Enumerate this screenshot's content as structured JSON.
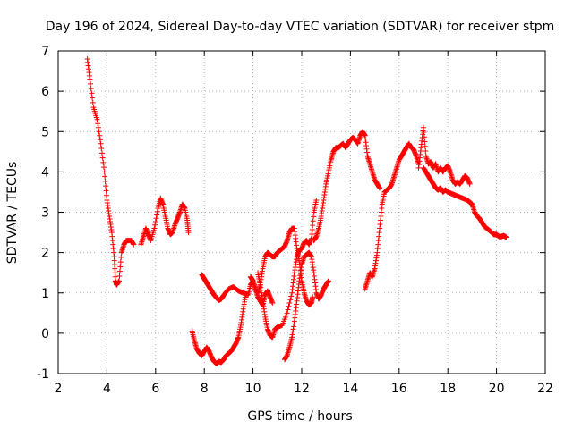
{
  "chart_data": {
    "type": "scatter",
    "title": "Day 196 of 2024, Sidereal Day-to-day VTEC variation (SDTVAR) for receiver stpm",
    "xlabel": "GPS time / hours",
    "ylabel": "SDTVAR / TECUs",
    "xlim": [
      2,
      22
    ],
    "ylim": [
      -1,
      7
    ],
    "xticks": [
      2,
      4,
      6,
      8,
      10,
      12,
      14,
      16,
      18,
      20,
      22
    ],
    "yticks": [
      -1,
      0,
      1,
      2,
      3,
      4,
      5,
      6,
      7
    ],
    "grid": true,
    "marker": "+",
    "color": "#ff0000",
    "series": [
      {
        "x": [
          3.2,
          3.3,
          3.45,
          3.6,
          3.75,
          3.9,
          4.0,
          4.1,
          4.2,
          4.3,
          4.35,
          4.4,
          4.5,
          4.6,
          4.7,
          4.8,
          5.0,
          5.1
        ],
        "y": [
          6.8,
          6.3,
          5.6,
          5.3,
          4.7,
          4.0,
          3.3,
          2.9,
          2.5,
          1.9,
          1.3,
          1.2,
          1.3,
          2.0,
          2.2,
          2.3,
          2.3,
          2.2
        ]
      },
      {
        "x": [
          5.4,
          5.5,
          5.6,
          5.7,
          5.8,
          5.95,
          6.1,
          6.2,
          6.3,
          6.4,
          6.5,
          6.6,
          6.7,
          6.8,
          6.9,
          7.0,
          7.1,
          7.2,
          7.3,
          7.35
        ],
        "y": [
          2.2,
          2.4,
          2.6,
          2.45,
          2.3,
          2.6,
          3.1,
          3.35,
          3.2,
          2.9,
          2.6,
          2.45,
          2.5,
          2.7,
          2.85,
          3.0,
          3.2,
          3.1,
          2.8,
          2.5
        ]
      },
      {
        "x": [
          7.5,
          7.6,
          7.7,
          7.8,
          7.9,
          8.0,
          8.1,
          8.2,
          8.3,
          8.4,
          8.5,
          8.6,
          8.7,
          8.8,
          8.9,
          9.0,
          9.1,
          9.2,
          9.3,
          9.4,
          9.5,
          9.6,
          9.7
        ],
        "y": [
          0.05,
          -0.2,
          -0.4,
          -0.5,
          -0.55,
          -0.45,
          -0.35,
          -0.45,
          -0.6,
          -0.7,
          -0.75,
          -0.7,
          -0.72,
          -0.65,
          -0.55,
          -0.5,
          -0.45,
          -0.35,
          -0.25,
          -0.1,
          0.2,
          0.6,
          0.95
        ]
      },
      {
        "x": [
          7.9,
          8.0,
          8.1,
          8.2,
          8.3,
          8.4,
          8.5,
          8.6,
          8.7,
          8.8,
          9.0,
          9.2,
          9.4,
          9.6,
          9.8,
          9.9,
          10.0,
          10.1,
          10.2,
          10.3,
          10.4,
          10.5,
          10.6,
          10.7,
          10.8
        ],
        "y": [
          1.45,
          1.35,
          1.25,
          1.15,
          1.05,
          0.95,
          0.88,
          0.82,
          0.85,
          0.95,
          1.1,
          1.15,
          1.05,
          1.0,
          0.95,
          1.2,
          1.3,
          1.1,
          0.9,
          0.8,
          0.7,
          0.95,
          1.05,
          0.9,
          0.75
        ]
      },
      {
        "x": [
          9.9,
          10.0,
          10.1,
          10.2,
          10.3,
          10.4,
          10.5,
          10.6,
          10.7,
          10.8,
          10.9,
          11.0,
          11.1,
          11.2,
          11.3,
          11.4,
          11.5,
          11.6,
          11.7,
          11.8,
          11.9,
          12.0,
          12.1,
          12.2,
          12.3,
          12.4,
          12.45
        ],
        "y": [
          1.4,
          1.3,
          1.1,
          1.0,
          1.2,
          1.6,
          1.9,
          2.0,
          1.95,
          1.9,
          1.9,
          2.0,
          2.05,
          2.1,
          2.15,
          2.3,
          2.5,
          2.6,
          2.6,
          2.1,
          1.8,
          1.3,
          1.0,
          0.8,
          0.7,
          0.75,
          0.9
        ]
      },
      {
        "x": [
          10.2,
          10.3,
          10.4,
          10.5,
          10.6,
          10.7,
          10.8,
          10.9,
          11.0,
          11.2,
          11.4,
          11.6,
          11.7,
          11.8,
          11.9,
          12.0,
          12.1,
          12.2,
          12.3,
          12.4,
          12.5,
          12.6
        ],
        "y": [
          1.5,
          1.2,
          0.8,
          0.4,
          0.1,
          -0.05,
          -0.1,
          0.1,
          0.15,
          0.2,
          0.5,
          1.0,
          1.5,
          1.9,
          2.05,
          2.1,
          2.25,
          2.3,
          2.2,
          2.35,
          3.0,
          3.3
        ]
      },
      {
        "x": [
          11.3,
          11.4,
          11.5,
          11.6,
          11.7,
          11.8,
          11.9,
          12.0,
          12.1,
          12.2,
          12.3,
          12.4,
          12.5,
          12.6,
          12.7,
          12.8,
          12.9,
          13.0,
          13.1
        ],
        "y": [
          -0.65,
          -0.55,
          -0.35,
          -0.1,
          0.3,
          0.8,
          1.3,
          1.7,
          1.9,
          1.95,
          2.0,
          1.9,
          1.5,
          1.0,
          0.85,
          0.95,
          1.1,
          1.2,
          1.3
        ]
      },
      {
        "x": [
          12.5,
          12.6,
          12.7,
          12.8,
          12.9,
          13.0,
          13.1,
          13.2,
          13.3,
          13.4,
          13.5,
          13.6,
          13.7,
          13.8,
          13.9,
          14.0,
          14.1,
          14.2,
          14.3,
          14.4,
          14.5,
          14.6,
          14.7,
          14.8,
          14.9,
          15.0,
          15.1,
          15.2
        ],
        "y": [
          2.3,
          2.4,
          2.6,
          2.9,
          3.3,
          3.7,
          4.0,
          4.3,
          4.5,
          4.6,
          4.6,
          4.65,
          4.7,
          4.6,
          4.7,
          4.8,
          4.85,
          4.8,
          4.7,
          4.9,
          5.0,
          4.9,
          4.4,
          4.2,
          4.0,
          3.8,
          3.7,
          3.6
        ]
      },
      {
        "x": [
          14.6,
          14.7,
          14.8,
          14.9,
          15.0,
          15.1,
          15.2,
          15.3,
          15.4,
          15.5,
          15.6,
          15.7,
          15.8,
          15.9,
          16.0,
          16.1,
          16.2,
          16.3,
          16.4,
          16.5,
          16.6,
          16.7,
          16.8
        ],
        "y": [
          1.1,
          1.3,
          1.5,
          1.4,
          1.6,
          2.0,
          2.6,
          3.2,
          3.5,
          3.55,
          3.6,
          3.7,
          3.9,
          4.1,
          4.3,
          4.4,
          4.5,
          4.6,
          4.7,
          4.6,
          4.55,
          4.4,
          4.2
        ]
      },
      {
        "x": [
          16.8,
          16.9,
          17.0,
          17.1,
          17.2,
          17.3,
          17.4,
          17.5,
          17.6,
          17.7,
          17.8,
          17.9,
          18.0,
          18.1,
          18.2,
          18.3,
          18.4,
          18.5,
          18.6,
          18.7,
          18.8,
          18.9
        ],
        "y": [
          4.1,
          4.6,
          5.1,
          4.4,
          4.2,
          4.25,
          4.1,
          4.2,
          4.0,
          4.1,
          4.0,
          4.1,
          4.15,
          4.0,
          3.8,
          3.7,
          3.75,
          3.7,
          3.8,
          3.9,
          3.85,
          3.7
        ]
      },
      {
        "x": [
          17.0,
          17.1,
          17.2,
          17.3,
          17.4,
          17.5,
          17.6,
          17.7,
          17.8,
          17.9,
          18.0,
          18.2,
          18.4,
          18.6,
          18.8,
          18.9,
          19.0,
          19.1,
          19.2,
          19.3,
          19.4,
          19.5,
          19.6,
          19.7,
          19.8,
          19.9,
          20.0,
          20.1,
          20.2,
          20.3,
          20.4
        ],
        "y": [
          4.1,
          4.0,
          3.9,
          3.8,
          3.7,
          3.6,
          3.55,
          3.6,
          3.5,
          3.55,
          3.5,
          3.45,
          3.4,
          3.35,
          3.3,
          3.25,
          3.2,
          3.0,
          2.9,
          2.85,
          2.75,
          2.65,
          2.6,
          2.55,
          2.5,
          2.45,
          2.45,
          2.4,
          2.4,
          2.42,
          2.38
        ]
      }
    ]
  }
}
